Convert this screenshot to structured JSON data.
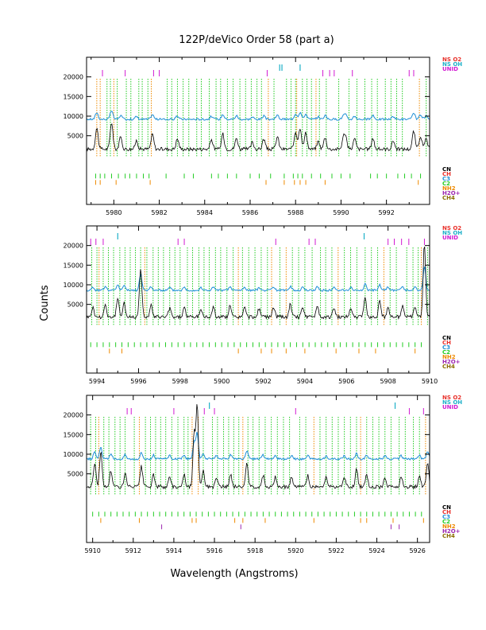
{
  "chart_data": {
    "title": "122P/deVico Order 58 (part a)",
    "xlabel": "Wavelength (Angstroms)",
    "ylabel": "Counts",
    "colors": {
      "spectrum": "#000000",
      "model": "#1e8fd6",
      "CN": "#000000",
      "CH": "#e8302a",
      "C3": "#1e8fd6",
      "C2": "#22cc22",
      "NH2": "#ee8a00",
      "H2O+": "#9c27b0",
      "CH4": "#8a6d00",
      "NS O2": "#e8302a",
      "NS OH": "#1eb0c8",
      "UNID": "#d21ad2",
      "green_lines": "#22cc22",
      "orange_lines": "#ee8a00"
    },
    "legend_top": [
      {
        "label": "NS O2",
        "color": "#e8302a"
      },
      {
        "label": "NS OH",
        "color": "#1eb0c8"
      },
      {
        "label": "UNID",
        "color": "#d21ad2"
      }
    ],
    "legend_bottom": [
      {
        "label": "CN",
        "color": "#000000"
      },
      {
        "label": "CH",
        "color": "#e8302a"
      },
      {
        "label": "C3",
        "color": "#1e8fd6"
      },
      {
        "label": "C2",
        "color": "#22cc22"
      },
      {
        "label": "NH2",
        "color": "#ee8a00"
      },
      {
        "label": "H2O+",
        "color": "#9c27b0"
      },
      {
        "label": "CH4",
        "color": "#8a6d00"
      }
    ],
    "panels": [
      {
        "type": "line",
        "xlim": [
          5978.8,
          5993.9
        ],
        "ylim": [
          -12500,
          25000
        ],
        "xticks": [
          5980,
          5982,
          5984,
          5986,
          5988,
          5990,
          5992
        ],
        "minor_xticks": [
          5979,
          5981,
          5983,
          5985,
          5987,
          5989,
          5991,
          5993
        ],
        "yticks": [
          5000,
          10000,
          15000,
          20000
        ],
        "model_level": 9200,
        "baseline": 1600,
        "peaks": [
          [
            5979.25,
            5400
          ],
          [
            5979.9,
            6900
          ],
          [
            5980.3,
            3000
          ],
          [
            5981.0,
            2200
          ],
          [
            5981.7,
            3800
          ],
          [
            5982.8,
            2600
          ],
          [
            5984.3,
            2400
          ],
          [
            5984.8,
            3800
          ],
          [
            5985.4,
            2800
          ],
          [
            5986.1,
            1700
          ],
          [
            5986.6,
            2600
          ],
          [
            5987.2,
            3200
          ],
          [
            5988.0,
            4500
          ],
          [
            5988.2,
            5600
          ],
          [
            5988.45,
            4200
          ],
          [
            5989.0,
            2000
          ],
          [
            5989.3,
            3000
          ],
          [
            5990.1,
            2400
          ],
          [
            5990.2,
            3200
          ],
          [
            5990.6,
            2600
          ],
          [
            5991.4,
            2800
          ],
          [
            5992.3,
            2200
          ],
          [
            5993.2,
            4600
          ],
          [
            5993.5,
            3400
          ],
          [
            5993.75,
            2600
          ]
        ],
        "unid": [
          5979.5,
          5980.5,
          5981.75,
          5982.0,
          5986.75,
          5989.2,
          5989.5,
          5989.7,
          5990.5,
          5993.0,
          5993.2
        ],
        "ns_oh": [
          5987.3,
          5987.4,
          5988.2
        ],
        "orange_vlines": [
          5979.25,
          5979.4,
          5980.0,
          5981.65,
          5986.8,
          5988.05,
          5988.9,
          5993.45
        ],
        "green_vlines": [
          5979.7,
          5979.85,
          5980.15,
          5980.55,
          5980.75,
          5981.1,
          5981.25,
          5981.5,
          5982.35,
          5982.55,
          5982.8,
          5983.05,
          5983.3,
          5983.65,
          5983.85,
          5984.2,
          5984.5,
          5984.7,
          5985.0,
          5985.25,
          5985.55,
          5985.8,
          5986.05,
          5986.3,
          5986.5,
          5987.05,
          5987.6,
          5987.8,
          5988.0,
          5988.3,
          5988.5,
          5988.7,
          5989.05,
          5989.35,
          5989.9,
          5990.35,
          5990.7,
          5991.05,
          5991.35,
          5991.6,
          5991.95,
          5992.2,
          5992.45,
          5992.7,
          5993.75
        ],
        "tick_rows": {
          "c2": [
            5979.2,
            5979.4,
            5979.6,
            5979.9,
            5980.2,
            5980.5,
            5980.7,
            5981.0,
            5981.3,
            5981.55,
            5982.3,
            5983.1,
            5983.5,
            5984.3,
            5984.6,
            5985.0,
            5985.4,
            5986.0,
            5986.4,
            5986.9,
            5987.5,
            5987.9,
            5988.1,
            5988.3,
            5988.7,
            5989.1,
            5989.6,
            5990.0,
            5990.4,
            5991.3,
            5991.6,
            5992.0,
            5992.5,
            5992.8,
            5993.1,
            5993.5
          ],
          "nh2": [
            5979.2,
            5979.4,
            5980.1,
            5981.6,
            5986.7,
            5987.5,
            5987.95,
            5988.2,
            5988.45,
            5989.3,
            5993.4
          ],
          "h2o": [],
          "ch4": []
        }
      },
      {
        "type": "line",
        "xlim": [
          5993.5,
          5910.0
        ],
        "ylim": [
          -12500,
          25000
        ],
        "xticks": [
          5994,
          5996,
          5998,
          5900,
          5902,
          5904,
          5906,
          5908,
          5910
        ],
        "minor_xticks": [
          5995,
          5997,
          5999,
          5901,
          5903,
          5905,
          5907,
          5909
        ],
        "yticks": [
          5000,
          10000,
          15000,
          20000
        ],
        "model_level": 8600,
        "baseline": 1800,
        "peaks": [
          [
            5993.8,
            2400
          ],
          [
            5994.4,
            3200
          ],
          [
            5995.0,
            4600
          ],
          [
            5995.3,
            3800
          ],
          [
            5996.1,
            12500
          ],
          [
            5996.6,
            3000
          ],
          [
            5997.5,
            2200
          ],
          [
            5998.2,
            2400
          ],
          [
            5999.0,
            2000
          ],
          [
            5999.6,
            2600
          ],
          [
            5900.4,
            2800
          ],
          [
            5901.1,
            2400
          ],
          [
            5901.8,
            2200
          ],
          [
            5902.5,
            2600
          ],
          [
            5903.3,
            3200
          ],
          [
            5903.9,
            2600
          ],
          [
            5904.6,
            3000
          ],
          [
            5905.4,
            2200
          ],
          [
            5906.2,
            2400
          ],
          [
            5906.9,
            5000
          ],
          [
            5907.6,
            4200
          ],
          [
            5908.0,
            2600
          ],
          [
            5908.7,
            3000
          ],
          [
            5909.3,
            2400
          ],
          [
            5909.75,
            18600
          ]
        ],
        "unid": [
          5993.7,
          5993.95,
          5994.3,
          5997.9,
          5998.2,
          5902.6,
          5904.2,
          5904.5,
          5908.0,
          5908.3,
          5908.65,
          5909.0,
          5909.75
        ],
        "ns_oh": [
          5995.0,
          5906.85
        ],
        "orange_vlines": [
          5994.1,
          5996.3,
          5900.8,
          5902.4,
          5903.1,
          5905.6,
          5907.8,
          5909.6
        ],
        "green_vlines": [
          5993.75,
          5994.0,
          5994.3,
          5994.55,
          5994.8,
          5995.1,
          5995.35,
          5995.6,
          5995.85,
          5996.1,
          5996.4,
          5996.7,
          5996.95,
          5997.2,
          5997.5,
          5997.75,
          5998.0,
          5998.35,
          5998.6,
          5998.9,
          5999.15,
          5999.4,
          5999.7,
          5999.95,
          5900.25,
          5900.55,
          5901.0,
          5901.3,
          5901.6,
          5901.9,
          5902.2,
          5902.8,
          5903.4,
          5903.7,
          5904.0,
          5904.35,
          5904.75,
          5905.0,
          5905.3,
          5905.9,
          5906.2,
          5906.5,
          5906.9,
          5907.2,
          5907.5,
          5908.1,
          5908.4,
          5908.9,
          5909.2,
          5909.45,
          5909.9
        ],
        "tick_rows": {
          "c2": [
            5993.7,
            5994.0,
            5994.3,
            5994.6,
            5994.9,
            5995.2,
            5995.5,
            5995.8,
            5996.1,
            5996.4,
            5996.7,
            5997.0,
            5997.3,
            5997.6,
            5997.9,
            5998.2,
            5998.5,
            5998.8,
            5999.1,
            5999.4,
            5999.7,
            5900.0,
            5900.3,
            5900.6,
            5900.9,
            5901.2,
            5901.5,
            5901.8,
            5902.1,
            5902.4,
            5902.7,
            5903.0,
            5903.3,
            5903.6,
            5903.9,
            5904.2,
            5904.5,
            5904.8,
            5905.1,
            5905.4,
            5905.7,
            5906.0,
            5906.3,
            5906.6,
            5906.9,
            5907.2,
            5907.5,
            5907.8,
            5908.1,
            5908.4,
            5908.7,
            5909.0,
            5909.3,
            5909.6
          ],
          "nh2": [
            5994.6,
            5995.2,
            5900.8,
            5901.9,
            5902.4,
            5903.1,
            5904.0,
            5905.5,
            5906.6,
            5907.4,
            5909.3
          ],
          "h2o": [],
          "ch4": []
        }
      },
      {
        "type": "line",
        "xlim": [
          5909.7,
          5926.6
        ],
        "ylim": [
          -12500,
          25000
        ],
        "xticks": [
          5910,
          5912,
          5914,
          5916,
          5918,
          5920,
          5922,
          5924,
          5926
        ],
        "minor_xticks": [
          5911,
          5913,
          5915,
          5917,
          5919,
          5921,
          5923,
          5925
        ],
        "yticks": [
          5000,
          10000,
          15000,
          20000
        ],
        "model_level": 8800,
        "baseline": 1700,
        "peaks": [
          [
            5910.1,
            6200
          ],
          [
            5910.4,
            9200
          ],
          [
            5910.9,
            4200
          ],
          [
            5911.6,
            3400
          ],
          [
            5912.4,
            5200
          ],
          [
            5913.0,
            3000
          ],
          [
            5913.8,
            2600
          ],
          [
            5914.5,
            3200
          ],
          [
            5915.0,
            13200
          ],
          [
            5915.15,
            20600
          ],
          [
            5915.45,
            4400
          ],
          [
            5916.1,
            2400
          ],
          [
            5916.8,
            3200
          ],
          [
            5917.6,
            6200
          ],
          [
            5918.4,
            3000
          ],
          [
            5919.0,
            2400
          ],
          [
            5919.8,
            2600
          ],
          [
            5920.6,
            2800
          ],
          [
            5921.5,
            2600
          ],
          [
            5922.4,
            2400
          ],
          [
            5923.0,
            4400
          ],
          [
            5923.5,
            3200
          ],
          [
            5924.4,
            2400
          ],
          [
            5925.2,
            2600
          ],
          [
            5926.1,
            2800
          ],
          [
            5926.5,
            6000
          ]
        ],
        "unid": [
          5911.7,
          5911.9,
          5914.0,
          5915.5,
          5916.0,
          5920.0,
          5925.6,
          5926.3
        ],
        "ns_oh": [
          5915.75,
          5924.9
        ],
        "orange_vlines": [
          5910.3,
          5912.3,
          5914.9,
          5915.2,
          5917.4,
          5920.9,
          5923.2,
          5926.4
        ],
        "green_vlines": [
          5909.9,
          5910.15,
          5910.55,
          5910.8,
          5911.1,
          5911.35,
          5911.6,
          5912.05,
          5912.6,
          5912.85,
          5913.1,
          5913.35,
          5913.6,
          5913.9,
          5914.2,
          5914.5,
          5914.7,
          5915.45,
          5915.9,
          5916.15,
          5916.45,
          5916.7,
          5916.95,
          5917.2,
          5917.65,
          5917.9,
          5918.2,
          5918.5,
          5918.8,
          5919.1,
          5919.4,
          5919.7,
          5920.2,
          5920.5,
          5921.2,
          5921.5,
          5921.8,
          5922.1,
          5922.4,
          5922.7,
          5923.0,
          5923.5,
          5923.8,
          5924.1,
          5924.4,
          5924.7,
          5925.1,
          5925.4,
          5925.8,
          5926.1
        ],
        "tick_rows": {
          "c2": [
            5910.0,
            5910.3,
            5910.6,
            5910.9,
            5911.2,
            5911.5,
            5911.8,
            5912.1,
            5912.4,
            5912.7,
            5913.0,
            5913.3,
            5913.6,
            5913.9,
            5914.2,
            5914.5,
            5914.8,
            5915.1,
            5915.4,
            5915.7,
            5916.0,
            5916.3,
            5916.6,
            5916.9,
            5917.2,
            5917.5,
            5917.8,
            5918.1,
            5918.4,
            5918.7,
            5919.0,
            5919.3,
            5919.6,
            5919.9,
            5920.2,
            5920.5,
            5920.8,
            5921.1,
            5921.4,
            5921.7,
            5922.0,
            5922.3,
            5922.6,
            5922.9,
            5923.2,
            5923.5,
            5923.8,
            5924.1,
            5924.4,
            5924.7,
            5925.0,
            5925.3,
            5925.6,
            5925.9,
            5926.2
          ],
          "nh2": [
            5910.4,
            5912.3,
            5914.9,
            5915.1,
            5917.0,
            5917.4,
            5918.5,
            5920.9,
            5923.2,
            5923.5,
            5924.8,
            5926.3
          ],
          "h2o": [
            5913.4,
            5917.3,
            5924.7,
            5925.1
          ],
          "ch4": []
        }
      }
    ]
  }
}
